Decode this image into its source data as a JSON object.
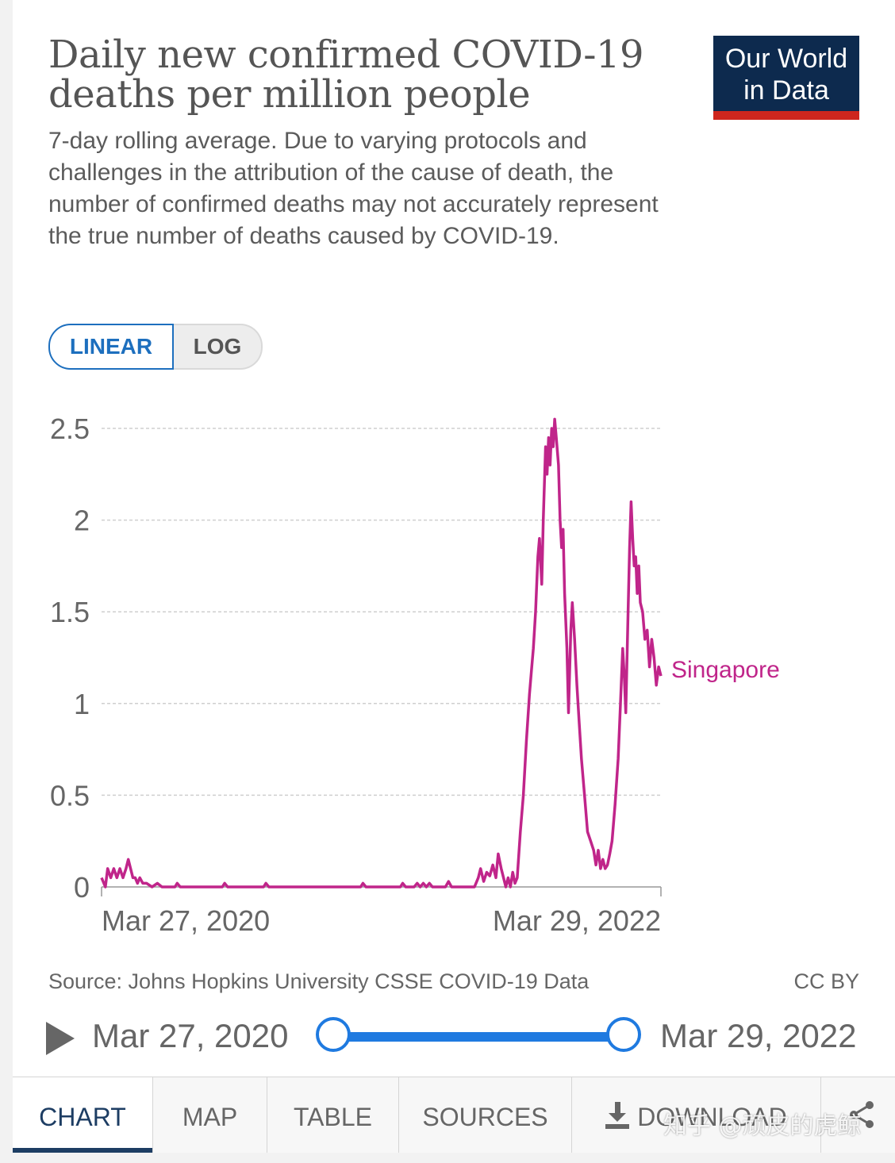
{
  "header": {
    "title": "Daily new confirmed COVID-19 deaths per million people",
    "subtitle": "7-day rolling average. Due to varying protocols and challenges in the attribution of the cause of death, the number of confirmed deaths may not accurately represent the true number of deaths caused by COVID-19.",
    "logo_line1": "Our World",
    "logo_line2": "in Data",
    "logo_bg": "#0d2a4e",
    "logo_accent": "#ce261e"
  },
  "scale_toggle": {
    "linear_label": "LINEAR",
    "log_label": "LOG",
    "selected": "LINEAR"
  },
  "footer": {
    "source": "Source: Johns Hopkins University CSSE COVID-19 Data",
    "license": "CC BY"
  },
  "timeline": {
    "play_icon": "play-icon",
    "start_label": "Mar 27, 2020",
    "end_label": "Mar 29, 2022",
    "accent": "#1f7ae0"
  },
  "tabs": [
    {
      "label": "CHART",
      "active": true
    },
    {
      "label": "MAP",
      "active": false
    },
    {
      "label": "TABLE",
      "active": false
    },
    {
      "label": "SOURCES",
      "active": false
    },
    {
      "label": "DOWNLOAD",
      "active": false,
      "icon": "download-icon"
    },
    {
      "label": "",
      "active": false,
      "icon": "share-icon"
    }
  ],
  "watermark": "知乎 @顽皮的虎鲸",
  "chart_data": {
    "type": "line",
    "title": "Daily new confirmed COVID-19 deaths per million people",
    "ylim": [
      0,
      2.5
    ],
    "y_ticks": [
      "0",
      "0.5",
      "1",
      "1.5",
      "2",
      "2.5"
    ],
    "y_tick_values": [
      0,
      0.5,
      1,
      1.5,
      2,
      2.5
    ],
    "x_tick_labels": [
      "Mar 27, 2020",
      "Mar 29, 2022"
    ],
    "xlim": [
      "2020-03-27",
      "2022-03-29"
    ],
    "grid": "horizontal dashed",
    "series": [
      {
        "name": "Singapore",
        "color": "#c0258a",
        "points": [
          [
            "2020-03-27",
            0.05
          ],
          [
            "2020-04-01",
            0.0
          ],
          [
            "2020-04-04",
            0.1
          ],
          [
            "2020-04-08",
            0.05
          ],
          [
            "2020-04-12",
            0.1
          ],
          [
            "2020-04-16",
            0.05
          ],
          [
            "2020-04-20",
            0.1
          ],
          [
            "2020-04-24",
            0.05
          ],
          [
            "2020-04-28",
            0.1
          ],
          [
            "2020-05-01",
            0.15
          ],
          [
            "2020-05-04",
            0.1
          ],
          [
            "2020-05-07",
            0.05
          ],
          [
            "2020-05-10",
            0.05
          ],
          [
            "2020-05-13",
            0.02
          ],
          [
            "2020-05-16",
            0.05
          ],
          [
            "2020-05-20",
            0.02
          ],
          [
            "2020-05-25",
            0.02
          ],
          [
            "2020-06-01",
            0.0
          ],
          [
            "2020-06-08",
            0.02
          ],
          [
            "2020-06-14",
            0.0
          ],
          [
            "2020-07-01",
            0.0
          ],
          [
            "2020-07-04",
            0.02
          ],
          [
            "2020-07-08",
            0.0
          ],
          [
            "2020-09-01",
            0.0
          ],
          [
            "2020-09-04",
            0.02
          ],
          [
            "2020-09-08",
            0.0
          ],
          [
            "2020-10-25",
            0.0
          ],
          [
            "2020-10-28",
            0.02
          ],
          [
            "2020-11-01",
            0.0
          ],
          [
            "2021-03-01",
            0.0
          ],
          [
            "2021-03-04",
            0.02
          ],
          [
            "2021-03-08",
            0.0
          ],
          [
            "2021-04-22",
            0.0
          ],
          [
            "2021-04-25",
            0.02
          ],
          [
            "2021-04-29",
            0.0
          ],
          [
            "2021-05-10",
            0.0
          ],
          [
            "2021-05-14",
            0.02
          ],
          [
            "2021-05-18",
            0.0
          ],
          [
            "2021-05-22",
            0.02
          ],
          [
            "2021-05-26",
            0.0
          ],
          [
            "2021-05-30",
            0.02
          ],
          [
            "2021-06-03",
            0.0
          ],
          [
            "2021-06-20",
            0.0
          ],
          [
            "2021-06-24",
            0.03
          ],
          [
            "2021-06-28",
            0.0
          ],
          [
            "2021-07-28",
            0.0
          ],
          [
            "2021-08-02",
            0.05
          ],
          [
            "2021-08-05",
            0.1
          ],
          [
            "2021-08-09",
            0.03
          ],
          [
            "2021-08-13",
            0.08
          ],
          [
            "2021-08-17",
            0.06
          ],
          [
            "2021-08-21",
            0.12
          ],
          [
            "2021-08-25",
            0.05
          ],
          [
            "2021-08-28",
            0.18
          ],
          [
            "2021-09-01",
            0.1
          ],
          [
            "2021-09-04",
            0.05
          ],
          [
            "2021-09-07",
            0.0
          ],
          [
            "2021-09-10",
            0.05
          ],
          [
            "2021-09-13",
            0.0
          ],
          [
            "2021-09-16",
            0.08
          ],
          [
            "2021-09-19",
            0.02
          ],
          [
            "2021-09-22",
            0.05
          ],
          [
            "2021-09-26",
            0.3
          ],
          [
            "2021-09-30",
            0.5
          ],
          [
            "2021-10-04",
            0.8
          ],
          [
            "2021-10-08",
            1.05
          ],
          [
            "2021-10-11",
            1.2
          ],
          [
            "2021-10-13",
            1.3
          ],
          [
            "2021-10-16",
            1.5
          ],
          [
            "2021-10-19",
            1.8
          ],
          [
            "2021-10-21",
            1.9
          ],
          [
            "2021-10-24",
            1.65
          ],
          [
            "2021-10-26",
            2.0
          ],
          [
            "2021-10-29",
            2.4
          ],
          [
            "2021-10-31",
            2.25
          ],
          [
            "2021-11-02",
            2.45
          ],
          [
            "2021-11-04",
            2.3
          ],
          [
            "2021-11-06",
            2.5
          ],
          [
            "2021-11-08",
            2.4
          ],
          [
            "2021-11-10",
            2.55
          ],
          [
            "2021-11-12",
            2.45
          ],
          [
            "2021-11-15",
            2.3
          ],
          [
            "2021-11-17",
            2.0
          ],
          [
            "2021-11-19",
            1.85
          ],
          [
            "2021-11-21",
            1.95
          ],
          [
            "2021-11-23",
            1.6
          ],
          [
            "2021-11-26",
            1.3
          ],
          [
            "2021-11-28",
            0.95
          ],
          [
            "2021-12-01",
            1.4
          ],
          [
            "2021-12-03",
            1.55
          ],
          [
            "2021-12-06",
            1.35
          ],
          [
            "2021-12-09",
            1.1
          ],
          [
            "2021-12-12",
            0.9
          ],
          [
            "2021-12-15",
            0.7
          ],
          [
            "2021-12-19",
            0.5
          ],
          [
            "2021-12-23",
            0.3
          ],
          [
            "2021-12-27",
            0.25
          ],
          [
            "2021-12-31",
            0.2
          ],
          [
            "2022-01-03",
            0.12
          ],
          [
            "2022-01-06",
            0.2
          ],
          [
            "2022-01-09",
            0.1
          ],
          [
            "2022-01-12",
            0.15
          ],
          [
            "2022-01-15",
            0.1
          ],
          [
            "2022-01-18",
            0.12
          ],
          [
            "2022-01-21",
            0.18
          ],
          [
            "2022-01-24",
            0.25
          ],
          [
            "2022-01-28",
            0.45
          ],
          [
            "2022-02-01",
            0.7
          ],
          [
            "2022-02-04",
            1.0
          ],
          [
            "2022-02-07",
            1.3
          ],
          [
            "2022-02-09",
            1.15
          ],
          [
            "2022-02-11",
            0.95
          ],
          [
            "2022-02-14",
            1.5
          ],
          [
            "2022-02-16",
            1.85
          ],
          [
            "2022-02-18",
            2.1
          ],
          [
            "2022-02-20",
            1.9
          ],
          [
            "2022-02-22",
            1.75
          ],
          [
            "2022-02-24",
            1.8
          ],
          [
            "2022-02-26",
            1.6
          ],
          [
            "2022-02-28",
            1.75
          ],
          [
            "2022-03-02",
            1.55
          ],
          [
            "2022-03-05",
            1.5
          ],
          [
            "2022-03-08",
            1.35
          ],
          [
            "2022-03-11",
            1.4
          ],
          [
            "2022-03-14",
            1.2
          ],
          [
            "2022-03-17",
            1.35
          ],
          [
            "2022-03-20",
            1.25
          ],
          [
            "2022-03-23",
            1.1
          ],
          [
            "2022-03-26",
            1.2
          ],
          [
            "2022-03-29",
            1.15
          ]
        ]
      }
    ]
  }
}
